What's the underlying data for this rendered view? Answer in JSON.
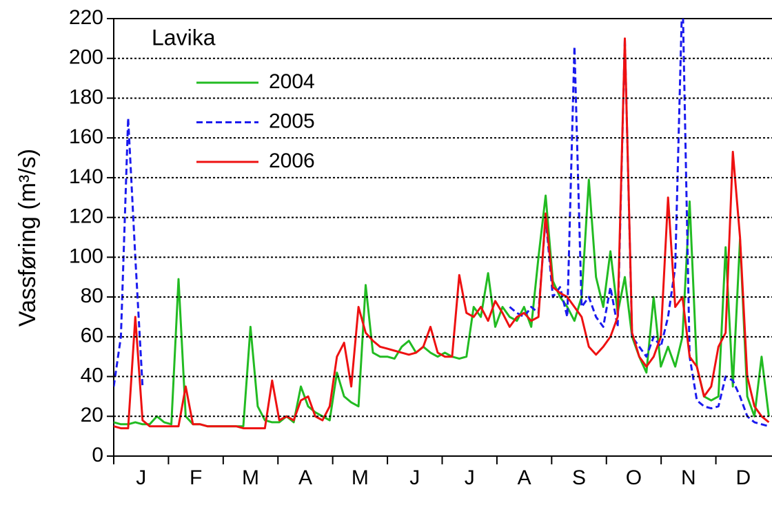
{
  "chart_data": {
    "type": "line",
    "title": "Lavika",
    "ylabel": "Vassføring (m³/s)",
    "categories": [
      "J",
      "F",
      "M",
      "A",
      "M",
      "J",
      "J",
      "A",
      "S",
      "O",
      "N",
      "D"
    ],
    "xlim": [
      0,
      365
    ],
    "x": [
      0,
      4,
      8,
      12,
      16,
      20,
      24,
      28,
      32,
      36,
      40,
      44,
      48,
      52,
      56,
      60,
      64,
      68,
      72,
      76,
      80,
      84,
      88,
      92,
      96,
      100,
      104,
      108,
      112,
      116,
      120,
      124,
      128,
      132,
      136,
      140,
      144,
      148,
      152,
      156,
      160,
      164,
      168,
      172,
      176,
      180,
      184,
      188,
      192,
      196,
      200,
      204,
      208,
      212,
      216,
      220,
      224,
      228,
      232,
      236,
      240,
      244,
      248,
      252,
      256,
      260,
      264,
      268,
      272,
      276,
      280,
      284,
      288,
      292,
      296,
      300,
      304,
      308,
      312,
      316,
      320,
      324,
      328,
      332,
      336,
      340,
      344,
      348,
      352,
      356,
      360,
      364
    ],
    "ylim": [
      0,
      220
    ],
    "yticks": [
      0,
      20,
      40,
      60,
      80,
      100,
      120,
      140,
      160,
      180,
      200,
      220
    ],
    "grid": true,
    "series": [
      {
        "name": "2004",
        "color": "#22bb22",
        "linestyle": "solid",
        "values": [
          17,
          16,
          16,
          17,
          16,
          16,
          20,
          17,
          16,
          89,
          20,
          16,
          16,
          15,
          15,
          15,
          15,
          15,
          15,
          65,
          25,
          18,
          17,
          17,
          20,
          17,
          35,
          25,
          22,
          20,
          18,
          42,
          30,
          27,
          25,
          86,
          52,
          50,
          50,
          49,
          55,
          58,
          52,
          55,
          52,
          50,
          52,
          50,
          49,
          50,
          75,
          70,
          92,
          65,
          75,
          70,
          68,
          75,
          65,
          100,
          131,
          88,
          80,
          75,
          68,
          80,
          139,
          90,
          75,
          103,
          72,
          90,
          60,
          50,
          42,
          80,
          45,
          55,
          45,
          60,
          128,
          45,
          30,
          28,
          30,
          105,
          35,
          109,
          30,
          20,
          50,
          20
        ]
      },
      {
        "name": "2005",
        "color": "#1a1aee",
        "linestyle": "dashed",
        "values": [
          35,
          60,
          170,
          100,
          35,
          null,
          null,
          null,
          null,
          null,
          null,
          null,
          null,
          null,
          null,
          null,
          null,
          null,
          null,
          null,
          null,
          null,
          null,
          null,
          null,
          null,
          null,
          null,
          null,
          null,
          null,
          null,
          null,
          null,
          null,
          null,
          null,
          null,
          null,
          null,
          null,
          null,
          null,
          null,
          null,
          null,
          null,
          null,
          null,
          null,
          null,
          null,
          null,
          null,
          null,
          75,
          72,
          70,
          75,
          72,
          120,
          80,
          85,
          70,
          206,
          75,
          80,
          70,
          65,
          85,
          65,
          210,
          60,
          55,
          50,
          60,
          55,
          70,
          95,
          235,
          50,
          28,
          25,
          24,
          25,
          40,
          38,
          30,
          20,
          17,
          16,
          15
        ]
      },
      {
        "name": "2006",
        "color": "#ee1111",
        "linestyle": "solid",
        "values": [
          15,
          14,
          14,
          70,
          18,
          15,
          15,
          15,
          15,
          15,
          35,
          16,
          16,
          15,
          15,
          15,
          15,
          15,
          14,
          14,
          14,
          14,
          38,
          18,
          20,
          18,
          28,
          30,
          20,
          18,
          25,
          50,
          57,
          35,
          75,
          62,
          58,
          55,
          54,
          53,
          52,
          51,
          52,
          55,
          65,
          52,
          50,
          50,
          91,
          72,
          70,
          75,
          68,
          78,
          72,
          65,
          70,
          72,
          68,
          70,
          122,
          85,
          82,
          80,
          75,
          70,
          55,
          51,
          55,
          60,
          70,
          210,
          62,
          50,
          45,
          50,
          60,
          130,
          75,
          80,
          50,
          45,
          30,
          35,
          55,
          62,
          153,
          110,
          40,
          25,
          20,
          17
        ]
      }
    ]
  }
}
